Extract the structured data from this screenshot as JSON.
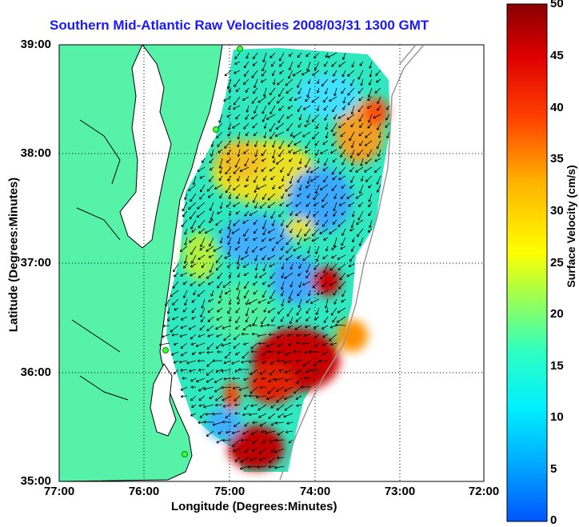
{
  "chart_data": {
    "type": "heatmap",
    "title": "Southern Mid-Atlantic Raw Velocities 2008/03/31 1300 GMT",
    "xlabel": "Longitude (Degrees:Minutes)",
    "ylabel": "Latitude (Degrees:Minutes)",
    "xlim": [
      -77,
      -72
    ],
    "ylim": [
      35,
      39
    ],
    "x_ticks": [
      "77:00",
      "76:00",
      "75:00",
      "74:00",
      "73:00",
      "72:00"
    ],
    "y_ticks": [
      "39:00",
      "38:00",
      "37:00",
      "36:00",
      "35:00"
    ],
    "grid": true,
    "colorbar": {
      "label": "Surface Velocity (cm/s)",
      "range": [
        0,
        50
      ],
      "ticks": [
        "50",
        "45",
        "40",
        "35",
        "30",
        "25",
        "20",
        "15",
        "10",
        "5",
        "0"
      ]
    }
  },
  "colors": {
    "land": "#55f2a8",
    "title": "#1a1aff",
    "coastline": "#000000",
    "arrows": "#000000"
  }
}
